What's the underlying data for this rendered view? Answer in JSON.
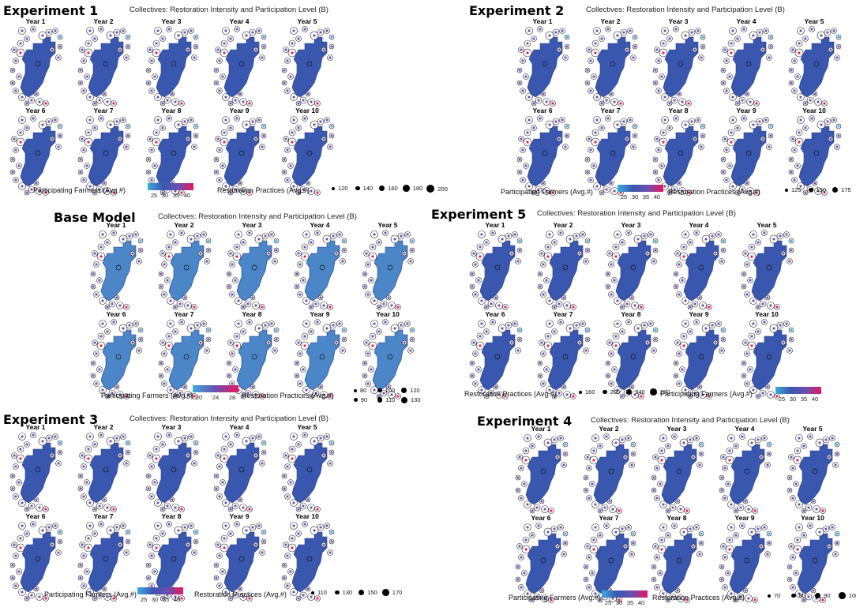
{
  "panels": [
    {
      "title": "Experiment 1",
      "subtitle": "Collectives: Restoration Intensity and Participation Level (B)",
      "years": [
        "Year 1",
        "Year 2",
        "Year 3",
        "Year 4",
        "Year 5",
        "Year 6",
        "Year 7",
        "Year 8",
        "Year 9",
        "Year 10"
      ],
      "color_legend": {
        "label": "Participating Farmers (Avg.#)",
        "ticks": [
          "25",
          "30",
          "35",
          "40"
        ]
      },
      "size_legend": {
        "label": "Restoration Practices (Avg.#)",
        "ticks": [
          "120",
          "140",
          "160",
          "180",
          "200"
        ]
      }
    },
    {
      "title": "Experiment 2",
      "subtitle": "Collectives: Restoration Intensity and Participation Level (B)",
      "years": [
        "Year 1",
        "Year 2",
        "Year 3",
        "Year 4",
        "Year 5",
        "Year 6",
        "Year 7",
        "Year 8",
        "Year 9",
        "Year 10"
      ],
      "color_legend": {
        "label": "Participating Farmers (Avg.#)",
        "ticks": [
          "25",
          "30",
          "35",
          "40"
        ]
      },
      "size_legend": {
        "label": "Restoration Practices (Avg.#)",
        "ticks": [
          "125",
          "150",
          "175"
        ]
      }
    },
    {
      "title": "Base Model",
      "subtitle": "Collectives: Restoration Intensity and Participation Level (B)",
      "years": [
        "Year 1",
        "Year 2",
        "Year 3",
        "Year 4",
        "Year 5",
        "Year 6",
        "Year 7",
        "Year 8",
        "Year 9",
        "Year 10"
      ],
      "color_legend": {
        "label": "Participating Farmers (Avg.#)",
        "ticks": [
          "20",
          "24",
          "28"
        ]
      },
      "size_legend": {
        "label": "Restoration Practices (Avg.#)",
        "ticks": [
          "80",
          "100",
          "120",
          "90",
          "110",
          "130"
        ]
      }
    },
    {
      "title": "Experiment 5",
      "subtitle": "Collectives: Restoration Intensity and Participation Level (B)",
      "years": [
        "Year 1",
        "Year 2",
        "Year 3",
        "Year 4",
        "Year 5",
        "Year 6",
        "Year 7",
        "Year 8",
        "Year 9",
        "Year 10"
      ],
      "color_legend": {
        "label": "Participating Farmers (Avg.#)",
        "ticks": [
          "25",
          "30",
          "35",
          "40"
        ]
      },
      "size_legend": {
        "label": "Restoration Practices (Avg.#)",
        "ticks": [
          "160",
          "200",
          "240",
          "280"
        ]
      }
    },
    {
      "title": "Experiment 3",
      "subtitle": "Collectives: Restoration Intensity and Participation Level (B)",
      "years": [
        "Year 1",
        "Year 2",
        "Year 3",
        "Year 4",
        "Year 5",
        "Year 6",
        "Year 7",
        "Year 8",
        "Year 9",
        "Year 10"
      ],
      "color_legend": {
        "label": "Participating Farmers (Avg.#)",
        "ticks": [
          "25",
          "30",
          "35",
          "40"
        ]
      },
      "size_legend": {
        "label": "Restoration Practices (Avg.#)",
        "ticks": [
          "110",
          "130",
          "150",
          "170"
        ]
      }
    },
    {
      "title": "Experiment 4",
      "subtitle": "Collectives: Restoration Intensity and Participation Level (B)",
      "years": [
        "Year 1",
        "Year 2",
        "Year 3",
        "Year 4",
        "Year 5",
        "Year 6",
        "Year 7",
        "Year 8",
        "Year 9",
        "Year 10"
      ],
      "color_legend": {
        "label": "Participating Farmers (Avg.#)",
        "ticks": [
          "25",
          "30",
          "35",
          "40"
        ]
      },
      "size_legend": {
        "label": "Restoration Practices (Avg.#)",
        "ticks": [
          "70",
          "80",
          "90",
          "100",
          "110"
        ]
      }
    }
  ],
  "colors": {
    "region": "#3a57b0",
    "region_base": "#4a86c8",
    "marker_low": "#3fa9e0",
    "marker_mid": "#6b4fb0",
    "marker_high": "#e8175d",
    "outline": "#222222"
  },
  "chart_data": {
    "type": "other",
    "description_units": "Small-multiple maps of collectives by year; marker color = participating farmers (avg #), marker size = restoration practices (avg #)",
    "panels": [
      "Experiment 1",
      "Experiment 2",
      "Base Model",
      "Experiment 5",
      "Experiment 3",
      "Experiment 4"
    ],
    "years": [
      "Year 1",
      "Year 2",
      "Year 3",
      "Year 4",
      "Year 5",
      "Year 6",
      "Year 7",
      "Year 8",
      "Year 9",
      "Year 10"
    ]
  }
}
